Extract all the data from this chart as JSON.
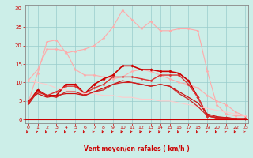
{
  "bg_color": "#cceee8",
  "grid_color": "#99cccc",
  "xlabel": "Vent moyen/en rafales ( km/h )",
  "xlabel_color": "#cc0000",
  "tick_color": "#cc0000",
  "spine_color": "#888888",
  "yticks": [
    0,
    5,
    10,
    15,
    20,
    25,
    30
  ],
  "xticks": [
    0,
    1,
    2,
    3,
    4,
    5,
    6,
    7,
    8,
    9,
    10,
    11,
    12,
    13,
    14,
    15,
    16,
    17,
    18,
    19,
    20,
    21,
    22,
    23
  ],
  "ylim": [
    -1,
    31
  ],
  "xlim": [
    -0.3,
    23.3
  ],
  "series": [
    {
      "x": [
        0,
        1,
        2,
        3,
        4,
        5,
        6,
        7,
        8,
        9,
        10,
        11,
        12,
        13,
        14,
        15,
        16,
        17,
        18,
        19,
        20,
        21,
        22,
        23
      ],
      "y": [
        10.5,
        13.5,
        19.0,
        19.0,
        18.5,
        13.5,
        12.0,
        12.0,
        11.5,
        11.0,
        11.5,
        13.0,
        13.5,
        13.0,
        12.0,
        11.0,
        10.0,
        9.5,
        8.5,
        6.5,
        5.0,
        4.0,
        2.0,
        1.0
      ],
      "color": "#ffaaaa",
      "lw": 0.8,
      "marker": "D",
      "ms": 1.5
    },
    {
      "x": [
        0,
        1,
        2,
        3,
        4,
        5,
        6,
        7,
        8,
        9,
        10,
        11,
        12,
        13,
        14,
        15,
        16,
        17,
        18,
        19,
        20,
        21,
        22,
        23
      ],
      "y": [
        4.5,
        12.5,
        21.0,
        21.5,
        18.0,
        18.5,
        19.0,
        20.0,
        22.0,
        25.0,
        29.5,
        27.0,
        24.5,
        26.5,
        24.0,
        24.0,
        24.5,
        24.5,
        24.0,
        13.0,
        4.0,
        1.5,
        1.0,
        1.0
      ],
      "color": "#ffaaaa",
      "lw": 0.8,
      "marker": "D",
      "ms": 1.5
    },
    {
      "x": [
        0,
        1,
        2,
        3,
        4,
        5,
        6,
        7,
        8,
        9,
        10,
        11,
        12,
        13,
        14,
        15,
        16,
        17,
        18,
        19,
        20,
        21,
        22,
        23
      ],
      "y": [
        4.5,
        8.0,
        6.5,
        6.5,
        9.5,
        9.5,
        7.0,
        9.5,
        11.0,
        12.0,
        14.5,
        14.5,
        13.5,
        13.5,
        13.0,
        13.0,
        12.5,
        10.5,
        6.0,
        1.0,
        0.5,
        0.5,
        0.2,
        0.2
      ],
      "color": "#cc0000",
      "lw": 1.2,
      "marker": "D",
      "ms": 1.8
    },
    {
      "x": [
        0,
        1,
        2,
        3,
        4,
        5,
        6,
        7,
        8,
        9,
        10,
        11,
        12,
        13,
        14,
        15,
        16,
        17,
        18,
        19,
        20,
        21,
        22,
        23
      ],
      "y": [
        4.5,
        7.5,
        6.5,
        7.5,
        9.0,
        9.0,
        7.0,
        8.5,
        9.5,
        11.5,
        11.5,
        11.5,
        11.0,
        10.5,
        12.0,
        12.0,
        12.0,
        9.5,
        6.0,
        1.0,
        0.5,
        0.5,
        0.2,
        0.2
      ],
      "color": "#dd3333",
      "lw": 1.0,
      "marker": "D",
      "ms": 1.5
    },
    {
      "x": [
        0,
        1,
        2,
        3,
        4,
        5,
        6,
        7,
        8,
        9,
        10,
        11,
        12,
        13,
        14,
        15,
        16,
        17,
        18,
        19,
        20,
        21,
        22,
        23
      ],
      "y": [
        5.0,
        7.0,
        6.0,
        6.5,
        7.0,
        7.0,
        6.5,
        7.5,
        8.5,
        9.5,
        10.5,
        10.0,
        9.5,
        9.0,
        9.5,
        9.0,
        7.5,
        6.0,
        4.5,
        1.5,
        0.8,
        0.5,
        0.2,
        0.2
      ],
      "color": "#cc1111",
      "lw": 0.9,
      "marker": null,
      "ms": 0
    },
    {
      "x": [
        0,
        1,
        2,
        3,
        4,
        5,
        6,
        7,
        8,
        9,
        10,
        11,
        12,
        13,
        14,
        15,
        16,
        17,
        18,
        19,
        20,
        21,
        22,
        23
      ],
      "y": [
        10.5,
        10.0,
        9.5,
        8.5,
        8.0,
        7.5,
        7.0,
        7.0,
        6.5,
        6.5,
        6.0,
        6.0,
        5.5,
        5.5,
        5.0,
        5.0,
        4.5,
        4.0,
        3.5,
        3.0,
        2.5,
        2.0,
        1.5,
        1.0
      ],
      "color": "#ffcccc",
      "lw": 0.8,
      "marker": null,
      "ms": 0
    },
    {
      "x": [
        0,
        1,
        2,
        3,
        4,
        5,
        6,
        7,
        8,
        9,
        10,
        11,
        12,
        13,
        14,
        15,
        16,
        17,
        18,
        19,
        20,
        21,
        22,
        23
      ],
      "y": [
        4.0,
        7.5,
        6.5,
        6.0,
        7.5,
        7.5,
        6.5,
        7.5,
        8.0,
        9.5,
        10.0,
        10.0,
        9.5,
        9.0,
        9.5,
        9.0,
        7.0,
        5.5,
        3.5,
        1.0,
        0.5,
        0.5,
        0.2,
        0.2
      ],
      "color": "#cc2222",
      "lw": 0.9,
      "marker": null,
      "ms": 0
    }
  ]
}
